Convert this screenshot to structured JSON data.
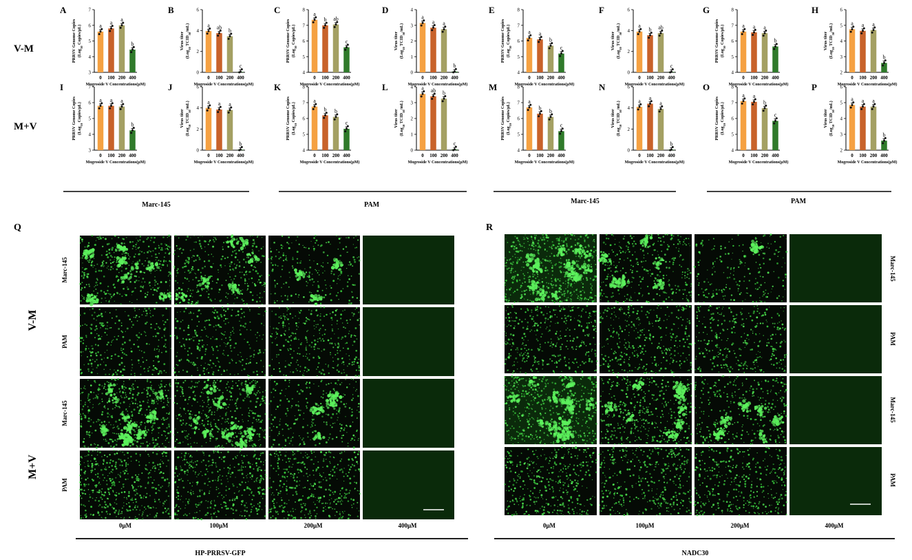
{
  "figure": {
    "row_labels": [
      "V-M",
      "M+V"
    ],
    "group_labels": [
      "Marc-145",
      "PAM",
      "Marc-145",
      "PAM"
    ],
    "bottom_labels": [
      "HP-PRRSV-GFP",
      "NADC30"
    ],
    "micro_panel_letters": [
      "Q",
      "R"
    ],
    "micro_col_labels": [
      "0μM",
      "100μM",
      "200μM",
      "400μM"
    ],
    "micro_row_labels_left": [
      "Marc-145",
      "PAM",
      "Marc-145",
      "PAM"
    ],
    "micro_row_labels_right": [
      "Marc-145",
      "PAM",
      "Marc-145",
      "PAM"
    ],
    "micro_left_side_labels": [
      "V-M",
      "M+V"
    ],
    "micro_density": {
      "left": [
        [
          0.55,
          0.45,
          0.18,
          0
        ],
        [
          0.35,
          0.35,
          0.38,
          0
        ],
        [
          0.75,
          0.65,
          0.25,
          0
        ],
        [
          0.7,
          0.65,
          0.6,
          0
        ]
      ],
      "right": [
        [
          0.95,
          0.45,
          0.15,
          0
        ],
        [
          0.55,
          0.5,
          0.4,
          0
        ],
        [
          0.85,
          0.65,
          0.45,
          0
        ],
        [
          0.6,
          0.55,
          0.55,
          0
        ]
      ]
    }
  },
  "colors": {
    "bar0": "#f5a142",
    "bar100": "#c8622a",
    "bar200": "#a4a063",
    "bar400": "#2f7a2a",
    "green": "#38d43c"
  },
  "chart_data": [
    {
      "letter": "A",
      "type": "bar",
      "ylabel1": "PRRSV Genome Copies",
      "ylabel2": "(Log10 Copies/μL)",
      "xlabel": "Mogroside V Concentrations(μM)",
      "categories": [
        "0",
        "100",
        "200",
        "400"
      ],
      "ylim": [
        3,
        7
      ],
      "yticks": [
        "3",
        "4",
        "5",
        "6",
        "7"
      ],
      "values": [
        5.6,
        5.8,
        6.0,
        4.45
      ],
      "sig": [
        "a",
        "a",
        "a",
        "b"
      ]
    },
    {
      "letter": "B",
      "type": "bar",
      "ylabel1": "Virus titer",
      "ylabel2": "(Log10 TCID50/mL)",
      "xlabel": "Mogroside V Concentrations(μM)",
      "categories": [
        "0",
        "100",
        "200",
        "400"
      ],
      "ylim": [
        0,
        6
      ],
      "yticks": [
        "0",
        "2",
        "4",
        "6"
      ],
      "values": [
        3.95,
        3.75,
        3.45,
        0.05
      ],
      "sig": [
        "a",
        "ab",
        "b",
        "c"
      ]
    },
    {
      "letter": "C",
      "type": "bar",
      "ylabel1": "PRRSV Genome Copies",
      "ylabel2": "(Log10 Copies/μL)",
      "xlabel": "Mogroside V Concentrations(μM)",
      "categories": [
        "0",
        "100",
        "200",
        "400"
      ],
      "ylim": [
        4,
        8
      ],
      "yticks": [
        "4",
        "5",
        "6",
        "7",
        "8"
      ],
      "values": [
        7.35,
        7.0,
        7.05,
        5.6
      ],
      "sig": [
        "a",
        "b",
        "ab",
        "c"
      ]
    },
    {
      "letter": "D",
      "type": "bar",
      "ylabel1": "Virus titer",
      "ylabel2": "(Log10 TCID50/mL)",
      "xlabel": "Mogroside V Concentrations(μM)",
      "categories": [
        "0",
        "100",
        "200",
        "400"
      ],
      "ylim": [
        0,
        4
      ],
      "yticks": [
        "0",
        "1",
        "2",
        "3",
        "4"
      ],
      "values": [
        3.15,
        2.85,
        2.75,
        0.05
      ],
      "sig": [
        "a",
        "a",
        "a",
        "b"
      ]
    },
    {
      "letter": "E",
      "type": "bar",
      "ylabel1": "PRRSV Genome Copies",
      "ylabel2": "(Log10 Copies/μL)",
      "xlabel": "Mogroside V Concentrations(μM)",
      "categories": [
        "0",
        "100",
        "200",
        "400"
      ],
      "ylim": [
        4,
        8
      ],
      "yticks": [
        "4",
        "5",
        "6",
        "7",
        "8"
      ],
      "values": [
        6.2,
        6.1,
        5.7,
        5.2
      ],
      "sig": [
        "a",
        "a",
        "b",
        "c"
      ]
    },
    {
      "letter": "F",
      "type": "bar",
      "ylabel1": "Virus titer",
      "ylabel2": "(Log10 TCID50/mL)",
      "xlabel": "Mogroside V Concentrations(μM)",
      "categories": [
        "0",
        "100",
        "200",
        "400"
      ],
      "ylim": [
        0,
        6
      ],
      "yticks": [
        "0",
        "2",
        "4",
        "6"
      ],
      "values": [
        3.9,
        3.55,
        3.75,
        0.05
      ],
      "sig": [
        "a",
        "b",
        "ab",
        "c"
      ]
    },
    {
      "letter": "G",
      "type": "bar",
      "ylabel1": "PRRSV Genome Copies",
      "ylabel2": "(Log10 Copies/μL)",
      "xlabel": "Mogroside V Concentrations(μM)",
      "categories": [
        "0",
        "100",
        "200",
        "400"
      ],
      "ylim": [
        4,
        8
      ],
      "yticks": [
        "4",
        "5",
        "6",
        "7",
        "8"
      ],
      "values": [
        6.6,
        6.55,
        6.5,
        5.65
      ],
      "sig": [
        "a",
        "a",
        "a",
        "b"
      ]
    },
    {
      "letter": "H",
      "type": "bar",
      "ylabel1": "Virus titer",
      "ylabel2": "(Log10 TCID50/mL)",
      "xlabel": "Mogroside V Concentrations(μM)",
      "categories": [
        "0",
        "100",
        "200",
        "400"
      ],
      "ylim": [
        2,
        6
      ],
      "yticks": [
        "2",
        "3",
        "4",
        "5",
        "6"
      ],
      "values": [
        4.75,
        4.65,
        4.7,
        2.6
      ],
      "sig": [
        "a",
        "a",
        "a",
        "b"
      ]
    },
    {
      "letter": "I",
      "type": "bar",
      "ylabel1": "PRRSV Genome Copies",
      "ylabel2": "(Log10 Copies/μL)",
      "xlabel": "Mogroside V Concentrations(μM)",
      "categories": [
        "0",
        "100",
        "200",
        "400"
      ],
      "ylim": [
        3,
        7
      ],
      "yticks": [
        "3",
        "4",
        "5",
        "6",
        "7"
      ],
      "values": [
        5.8,
        5.8,
        5.75,
        4.25
      ],
      "sig": [
        "a",
        "a",
        "a",
        "b"
      ]
    },
    {
      "letter": "J",
      "type": "bar",
      "ylabel1": "Virus titer",
      "ylabel2": "(Log10 TCID50/mL)",
      "xlabel": "Mogroside V Concentrations(μM)",
      "categories": [
        "0",
        "100",
        "200",
        "400"
      ],
      "ylim": [
        0,
        6
      ],
      "yticks": [
        "0",
        "2",
        "4",
        "6"
      ],
      "values": [
        4.0,
        3.85,
        3.8,
        0.05
      ],
      "sig": [
        "a",
        "a",
        "a",
        "b"
      ]
    },
    {
      "letter": "K",
      "type": "bar",
      "ylabel1": "PRRSV Genome Copies",
      "ylabel2": "(Log10 Copies/μL)",
      "xlabel": "Mogroside V Concentrations(μM)",
      "categories": [
        "0",
        "100",
        "200",
        "400"
      ],
      "ylim": [
        4,
        8
      ],
      "yticks": [
        "4",
        "5",
        "6",
        "7",
        "8"
      ],
      "values": [
        6.75,
        6.2,
        6.1,
        5.35
      ],
      "sig": [
        "a",
        "b",
        "b",
        "c"
      ]
    },
    {
      "letter": "L",
      "type": "bar",
      "ylabel1": "Virus titer",
      "ylabel2": "(Log10 TCID50/mL)",
      "xlabel": "Mogroside V Concentrations(μM)",
      "categories": [
        "0",
        "100",
        "200",
        "400"
      ],
      "ylim": [
        0,
        4
      ],
      "yticks": [
        "0",
        "1",
        "2",
        "3",
        "4"
      ],
      "values": [
        3.55,
        3.4,
        3.25,
        0.05
      ],
      "sig": [
        "a",
        "ab",
        "b",
        "c"
      ]
    },
    {
      "letter": "M",
      "type": "bar",
      "ylabel1": "PRRSV Genome Copies",
      "ylabel2": "(Log10 Copies/μL)",
      "xlabel": "Mogroside V Concentrations(μM)",
      "categories": [
        "0",
        "100",
        "200",
        "400"
      ],
      "ylim": [
        4,
        8
      ],
      "yticks": [
        "4",
        "5",
        "6",
        "7",
        "8"
      ],
      "values": [
        6.7,
        6.3,
        6.1,
        5.2
      ],
      "sig": [
        "a",
        "b",
        "b",
        "c"
      ]
    },
    {
      "letter": "N",
      "type": "bar",
      "ylabel1": "Virus titer",
      "ylabel2": "(Log10 TCID50/mL)",
      "xlabel": "Mogroside V Concentrations(μM)",
      "categories": [
        "0",
        "100",
        "200",
        "400"
      ],
      "ylim": [
        0,
        6
      ],
      "yticks": [
        "0",
        "2",
        "4",
        "6"
      ],
      "values": [
        4.1,
        4.4,
        3.9,
        0.05
      ],
      "sig": [
        "a",
        "a",
        "a",
        "b"
      ]
    },
    {
      "letter": "O",
      "type": "bar",
      "ylabel1": "PRRSV Genome Copies",
      "ylabel2": "(Log10 Copies/μL)",
      "xlabel": "Mogroside V Concentrations(μM)",
      "categories": [
        "0",
        "100",
        "200",
        "400"
      ],
      "ylim": [
        4,
        8
      ],
      "yticks": [
        "4",
        "5",
        "6",
        "7",
        "8"
      ],
      "values": [
        7.1,
        7.05,
        6.65,
        5.85
      ],
      "sig": [
        "a",
        "a",
        "b",
        "c"
      ]
    },
    {
      "letter": "P",
      "type": "bar",
      "ylabel1": "Virus titer",
      "ylabel2": "(Log10 TCID50/mL)",
      "xlabel": "Mogroside V Concentrations(μM)",
      "categories": [
        "0",
        "100",
        "200",
        "400"
      ],
      "ylim": [
        2,
        6
      ],
      "yticks": [
        "2",
        "3",
        "4",
        "5",
        "6"
      ],
      "values": [
        4.85,
        4.75,
        4.75,
        2.6
      ],
      "sig": [
        "a",
        "a",
        "a",
        "b"
      ]
    }
  ]
}
